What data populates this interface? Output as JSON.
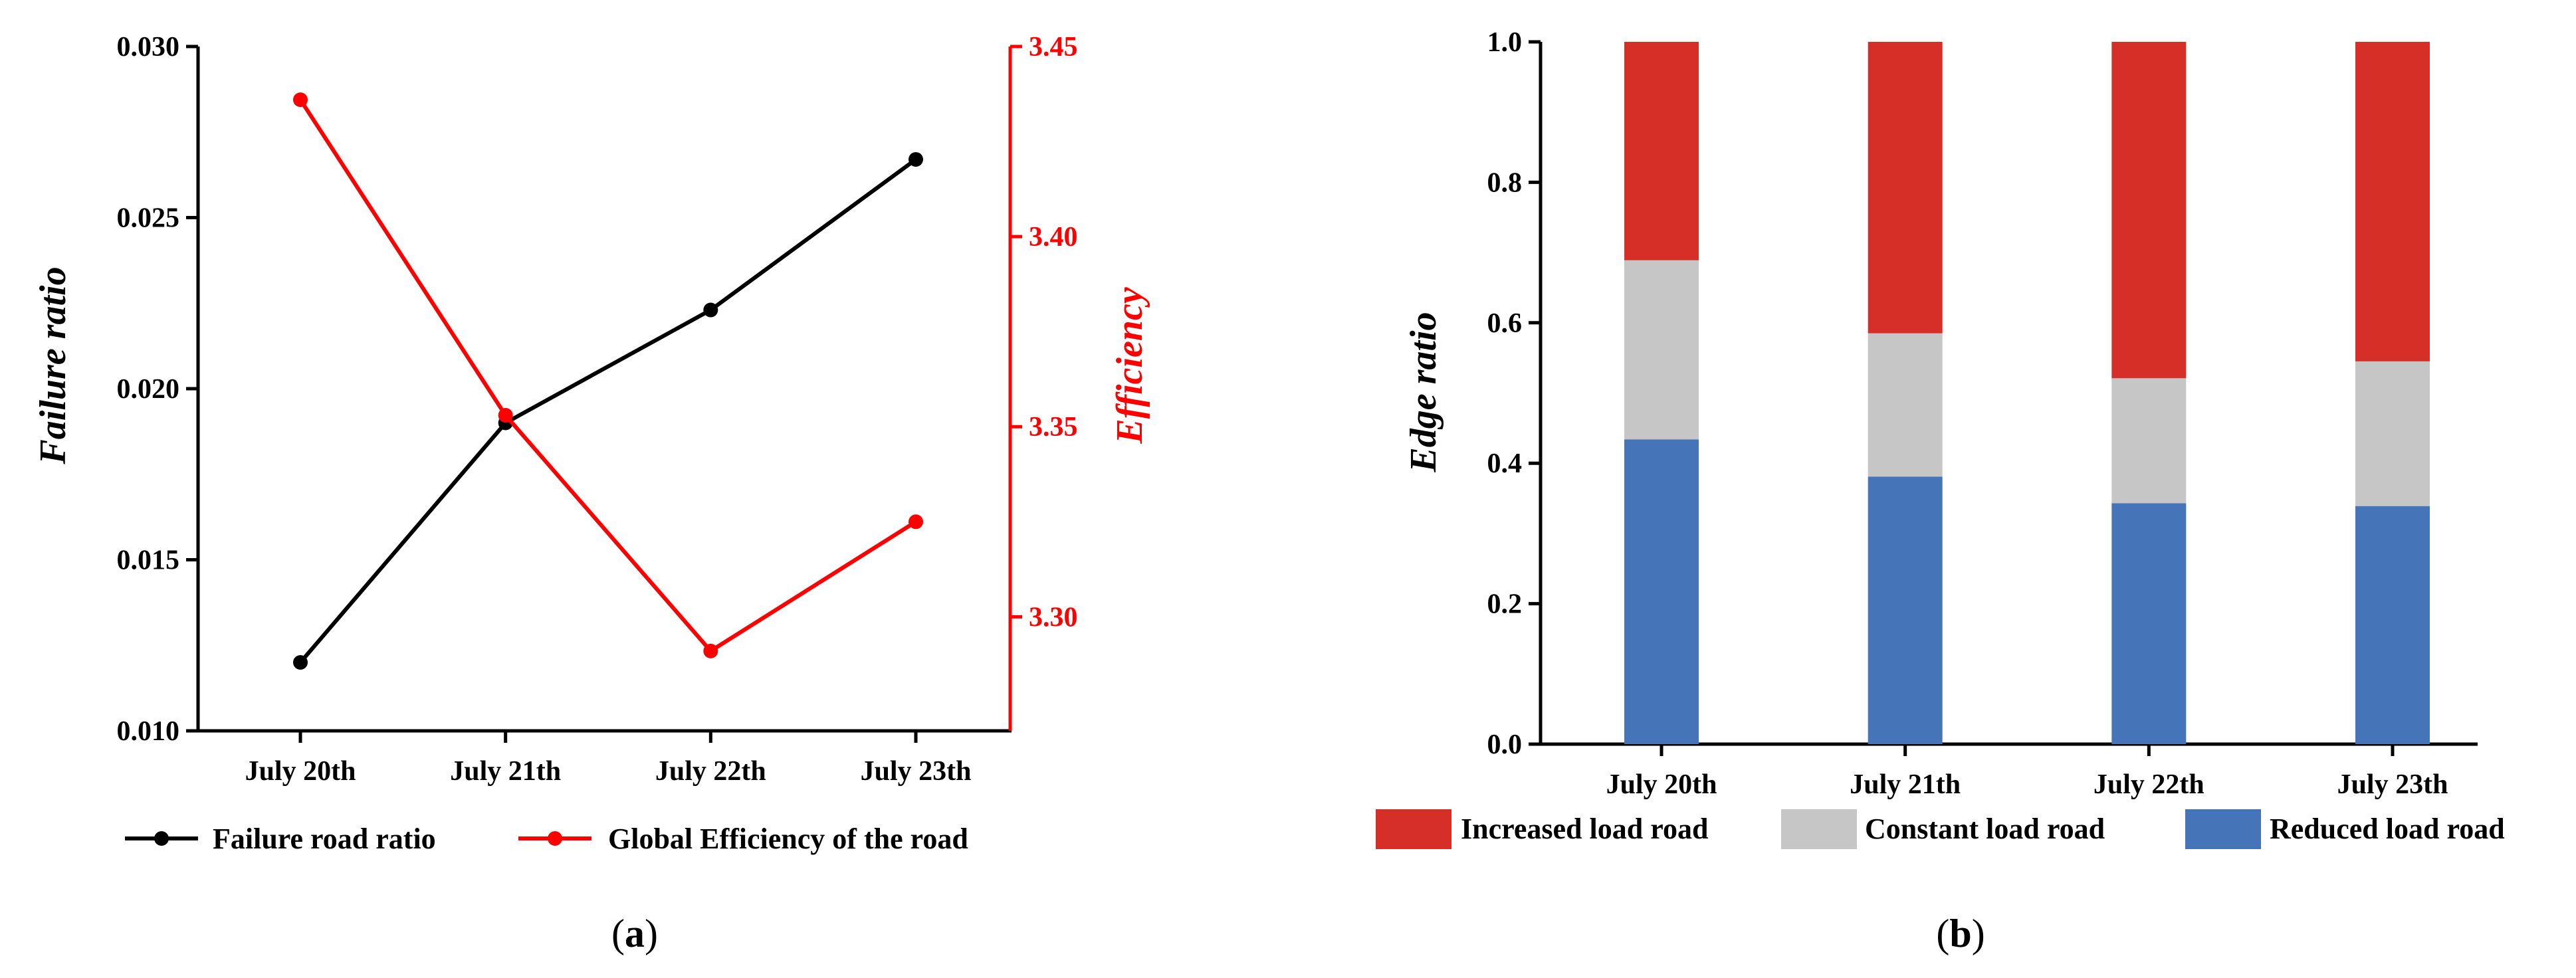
{
  "colors": {
    "failure": "#000000",
    "efficiency": "#ff0000",
    "increased": "#d62f27",
    "constant": "#c6c6c6",
    "reduced": "#4674b8"
  },
  "chart_data": [
    {
      "type": "line",
      "panel_label": "a",
      "categories": [
        "July 20th",
        "July 21th",
        "July 22th",
        "July 23th"
      ],
      "ylabel": "Failure ratio",
      "y2label": "Efficiency",
      "ylim": [
        0.01,
        0.03
      ],
      "y2lim": [
        3.27,
        3.45
      ],
      "yticks": [
        "0.010",
        "0.015",
        "0.020",
        "0.025",
        "0.030"
      ],
      "y2ticks": [
        "3.30",
        "3.35",
        "3.40",
        "3.45"
      ],
      "grid": false,
      "legend_position": "bottom",
      "series": [
        {
          "name": "Failure road ratio",
          "axis": "left",
          "values": [
            0.012,
            0.019,
            0.0223,
            0.0267
          ]
        },
        {
          "name": "Global Efficiency of the road",
          "axis": "right",
          "values": [
            3.436,
            3.353,
            3.291,
            3.325
          ]
        }
      ]
    },
    {
      "type": "bar",
      "stacked": true,
      "panel_label": "b",
      "categories": [
        "July 20th",
        "July 21th",
        "July 22th",
        "July 23th"
      ],
      "ylabel": "Edge ratio",
      "ylim": [
        0.0,
        1.0
      ],
      "yticks": [
        "0.0",
        "0.2",
        "0.4",
        "0.6",
        "0.8",
        "1.0"
      ],
      "grid": false,
      "legend_position": "bottom",
      "series": [
        {
          "name": "Reduced load road",
          "values": [
            0.434,
            0.381,
            0.343,
            0.339
          ]
        },
        {
          "name": "Constant load road",
          "values": [
            0.255,
            0.204,
            0.178,
            0.206
          ]
        },
        {
          "name": "Increased load road",
          "values": [
            0.311,
            0.415,
            0.479,
            0.455
          ]
        }
      ]
    }
  ]
}
